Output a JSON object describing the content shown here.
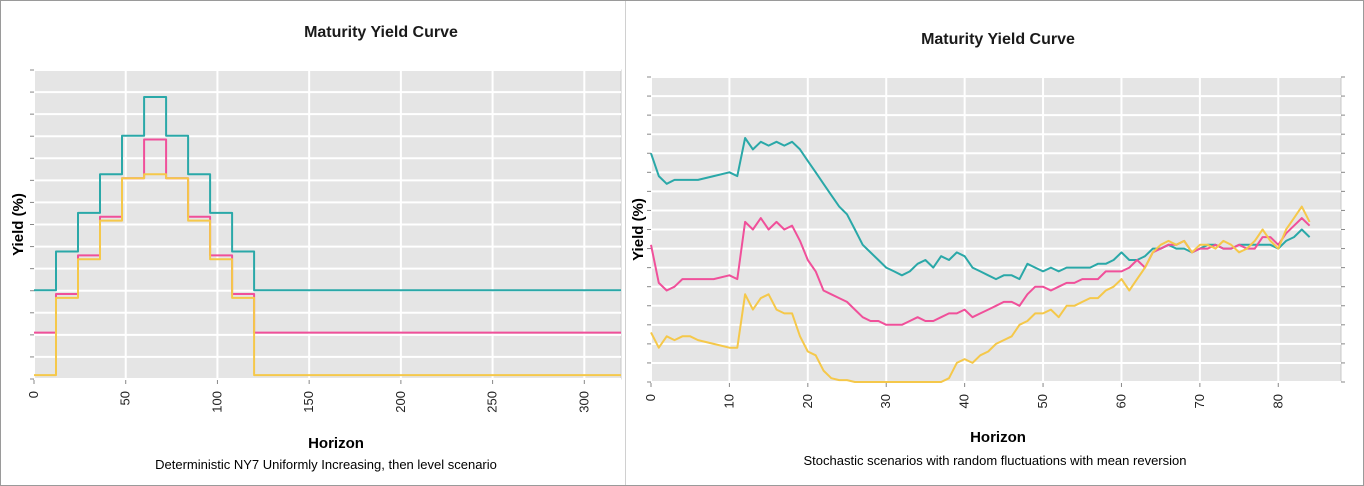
{
  "chart_data": [
    {
      "type": "line",
      "title": "Maturity Yield Curve",
      "xlabel": "Horizon",
      "ylabel": "Yield (%)",
      "xlim": [
        0,
        320
      ],
      "ylim": [
        0,
        8
      ],
      "xticks": [
        "0",
        "50",
        "100",
        "150",
        "200",
        "250",
        "300"
      ],
      "grid": true,
      "caption": "Deterministic NY7 Uniformly Increasing, then level scenario",
      "series": [
        {
          "color": "#2aa8a8",
          "x": [
            0,
            12,
            12,
            24,
            24,
            36,
            36,
            48,
            48,
            60,
            60,
            72,
            72,
            84,
            84,
            96,
            96,
            108,
            108,
            120,
            120,
            320
          ],
          "y": [
            2.3,
            2.3,
            3.3,
            3.3,
            4.3,
            4.3,
            5.3,
            5.3,
            6.3,
            6.3,
            7.3,
            7.3,
            6.3,
            6.3,
            5.3,
            5.3,
            4.3,
            4.3,
            3.3,
            3.3,
            2.3,
            2.3
          ]
        },
        {
          "color": "#f0509a",
          "x": [
            0,
            12,
            12,
            24,
            24,
            36,
            36,
            48,
            48,
            60,
            60,
            72,
            72,
            84,
            84,
            96,
            96,
            108,
            108,
            120,
            120,
            320
          ],
          "y": [
            1.2,
            1.2,
            2.2,
            2.2,
            3.2,
            3.2,
            4.2,
            4.2,
            5.2,
            5.2,
            6.2,
            6.2,
            5.2,
            5.2,
            4.2,
            4.2,
            3.2,
            3.2,
            2.2,
            2.2,
            1.2,
            1.2
          ]
        },
        {
          "color": "#f5c84a",
          "x": [
            0,
            12,
            12,
            24,
            24,
            36,
            36,
            48,
            48,
            60,
            60,
            72,
            72,
            84,
            84,
            96,
            96,
            108,
            108,
            120,
            120,
            320
          ],
          "y": [
            0.1,
            0.1,
            2.1,
            2.1,
            3.1,
            3.1,
            4.1,
            4.1,
            5.2,
            5.2,
            5.3,
            5.3,
            5.2,
            5.2,
            4.1,
            4.1,
            3.1,
            3.1,
            2.1,
            2.1,
            0.1,
            0.1
          ]
        }
      ]
    },
    {
      "type": "line",
      "title": "Maturity Yield Curve",
      "xlabel": "Horizon",
      "ylabel": "Yield (%)",
      "xlim": [
        0,
        88
      ],
      "ylim": [
        0,
        8
      ],
      "xticks": [
        "0",
        "10",
        "20",
        "30",
        "40",
        "50",
        "60",
        "70",
        "80"
      ],
      "grid": true,
      "caption": "Stochastic scenarios with random fluctuations with mean reversion",
      "series": [
        {
          "color": "#2aa8a8",
          "x": [
            0,
            1,
            2,
            3,
            4,
            5,
            6,
            8,
            10,
            11,
            12,
            13,
            14,
            15,
            16,
            17,
            18,
            19,
            20,
            21,
            22,
            23,
            24,
            25,
            26,
            27,
            28,
            29,
            30,
            31,
            32,
            33,
            34,
            35,
            36,
            37,
            38,
            39,
            40,
            41,
            42,
            43,
            44,
            45,
            46,
            47,
            48,
            49,
            50,
            51,
            52,
            53,
            54,
            55,
            56,
            57,
            58,
            59,
            60,
            61,
            62,
            63,
            64,
            65,
            66,
            67,
            68,
            69,
            70,
            71,
            72,
            73,
            74,
            75,
            76,
            77,
            78,
            79,
            80,
            81,
            82,
            83,
            84
          ],
          "y": [
            6.0,
            5.4,
            5.2,
            5.3,
            5.3,
            5.3,
            5.3,
            5.4,
            5.5,
            5.4,
            6.4,
            6.1,
            6.3,
            6.2,
            6.3,
            6.2,
            6.3,
            6.1,
            5.8,
            5.5,
            5.2,
            4.9,
            4.6,
            4.4,
            4.0,
            3.6,
            3.4,
            3.2,
            3.0,
            2.9,
            2.8,
            2.9,
            3.1,
            3.2,
            3.0,
            3.3,
            3.2,
            3.4,
            3.3,
            3.0,
            2.9,
            2.8,
            2.7,
            2.8,
            2.8,
            2.7,
            3.1,
            3.0,
            2.9,
            3.0,
            2.9,
            3.0,
            3.0,
            3.0,
            3.0,
            3.1,
            3.1,
            3.2,
            3.4,
            3.2,
            3.2,
            3.3,
            3.5,
            3.5,
            3.6,
            3.5,
            3.5,
            3.4,
            3.5,
            3.6,
            3.6,
            3.5,
            3.5,
            3.6,
            3.6,
            3.6,
            3.6,
            3.6,
            3.5,
            3.7,
            3.8,
            4.0,
            3.8
          ]
        },
        {
          "color": "#f0509a",
          "x": [
            0,
            1,
            2,
            3,
            4,
            5,
            6,
            8,
            10,
            11,
            12,
            13,
            14,
            15,
            16,
            17,
            18,
            19,
            20,
            21,
            22,
            23,
            24,
            25,
            26,
            27,
            28,
            29,
            30,
            31,
            32,
            33,
            34,
            35,
            36,
            37,
            38,
            39,
            40,
            41,
            42,
            43,
            44,
            45,
            46,
            47,
            48,
            49,
            50,
            51,
            52,
            53,
            54,
            55,
            56,
            57,
            58,
            59,
            60,
            61,
            62,
            63,
            64,
            65,
            66,
            67,
            68,
            69,
            70,
            71,
            72,
            73,
            74,
            75,
            76,
            77,
            78,
            79,
            80,
            81,
            82,
            83,
            84
          ],
          "y": [
            3.6,
            2.6,
            2.4,
            2.5,
            2.7,
            2.7,
            2.7,
            2.7,
            2.8,
            2.7,
            4.2,
            4.0,
            4.3,
            4.0,
            4.2,
            4.0,
            4.1,
            3.7,
            3.2,
            2.9,
            2.4,
            2.3,
            2.2,
            2.1,
            1.9,
            1.7,
            1.6,
            1.6,
            1.5,
            1.5,
            1.5,
            1.6,
            1.7,
            1.6,
            1.6,
            1.7,
            1.8,
            1.8,
            1.9,
            1.7,
            1.8,
            1.9,
            2.0,
            2.1,
            2.1,
            2.0,
            2.3,
            2.5,
            2.5,
            2.4,
            2.5,
            2.6,
            2.6,
            2.7,
            2.7,
            2.7,
            2.9,
            2.9,
            2.9,
            3.0,
            3.2,
            3.0,
            3.4,
            3.5,
            3.6,
            3.6,
            3.7,
            3.4,
            3.5,
            3.5,
            3.6,
            3.5,
            3.5,
            3.6,
            3.5,
            3.5,
            3.8,
            3.8,
            3.6,
            3.9,
            4.1,
            4.3,
            4.1
          ]
        },
        {
          "color": "#f5c84a",
          "x": [
            0,
            1,
            2,
            3,
            4,
            5,
            6,
            8,
            10,
            11,
            12,
            13,
            14,
            15,
            16,
            17,
            18,
            19,
            20,
            21,
            22,
            23,
            24,
            25,
            26,
            27,
            28,
            29,
            30,
            31,
            32,
            33,
            34,
            35,
            36,
            37,
            38,
            39,
            40,
            41,
            42,
            43,
            44,
            45,
            46,
            47,
            48,
            49,
            50,
            51,
            52,
            53,
            54,
            55,
            56,
            57,
            58,
            59,
            60,
            61,
            62,
            63,
            64,
            65,
            66,
            67,
            68,
            69,
            70,
            71,
            72,
            73,
            74,
            75,
            76,
            77,
            78,
            79,
            80,
            81,
            82,
            83,
            84
          ],
          "y": [
            1.3,
            0.9,
            1.2,
            1.1,
            1.2,
            1.2,
            1.1,
            1.0,
            0.9,
            0.9,
            2.3,
            1.9,
            2.2,
            2.3,
            1.9,
            1.8,
            1.8,
            1.2,
            0.8,
            0.7,
            0.3,
            0.1,
            0.05,
            0.05,
            0.0,
            0.0,
            0.0,
            0.0,
            0.0,
            0.0,
            0.0,
            0.0,
            0.0,
            0.0,
            0.0,
            0.0,
            0.1,
            0.5,
            0.6,
            0.5,
            0.7,
            0.8,
            1.0,
            1.1,
            1.2,
            1.5,
            1.6,
            1.8,
            1.8,
            1.9,
            1.7,
            2.0,
            2.0,
            2.1,
            2.2,
            2.2,
            2.4,
            2.5,
            2.7,
            2.4,
            2.7,
            3.0,
            3.4,
            3.6,
            3.7,
            3.6,
            3.7,
            3.4,
            3.6,
            3.6,
            3.5,
            3.7,
            3.6,
            3.4,
            3.5,
            3.7,
            4.0,
            3.7,
            3.5,
            4.0,
            4.3,
            4.6,
            4.2
          ]
        }
      ]
    }
  ]
}
